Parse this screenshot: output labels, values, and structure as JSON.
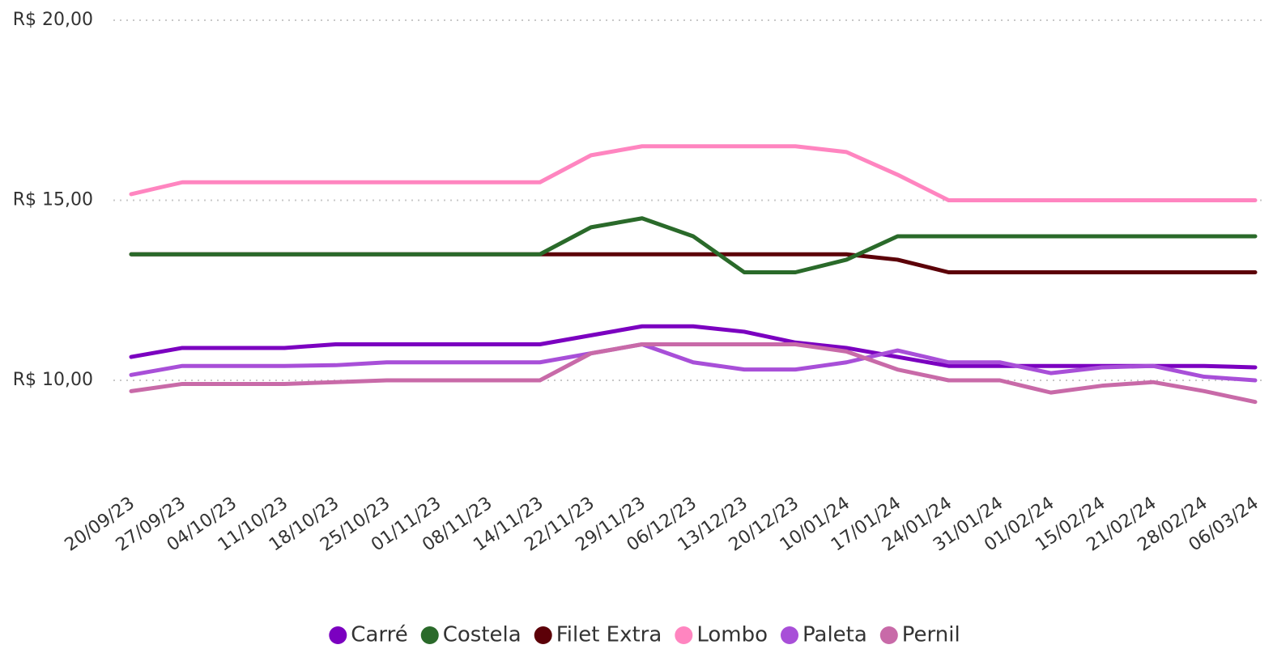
{
  "chart_data": {
    "type": "line",
    "categories": [
      "20/09/23",
      "27/09/23",
      "04/10/23",
      "11/10/23",
      "18/10/23",
      "25/10/23",
      "01/11/23",
      "08/11/23",
      "14/11/23",
      "22/11/23",
      "29/11/23",
      "06/12/23",
      "13/12/23",
      "20/12/23",
      "10/01/24",
      "17/01/24",
      "24/01/24",
      "31/01/24",
      "01/02/24",
      "15/02/24",
      "21/02/24",
      "28/02/24",
      "06/03/24"
    ],
    "series": [
      {
        "name": "Carré",
        "color": "#7b00c0",
        "values": [
          10.65,
          10.9,
          10.9,
          10.9,
          11,
          11,
          11,
          11,
          11,
          11.25,
          11.5,
          11.5,
          11.35,
          11.05,
          10.9,
          10.65,
          10.4,
          10.4,
          10.4,
          10.4,
          10.4,
          10.4,
          10.36
        ]
      },
      {
        "name": "Costela",
        "color": "#2a6a2a",
        "values": [
          13.5,
          13.5,
          13.5,
          13.5,
          13.5,
          13.5,
          13.5,
          13.5,
          13.5,
          14.25,
          14.5,
          14.0,
          13.0,
          13.0,
          13.35,
          14.0,
          14.0,
          14.0,
          14.0,
          14.0,
          14.0,
          14.0,
          14.0
        ]
      },
      {
        "name": "Filet Extra",
        "color": "#5c0008",
        "values": [
          13.5,
          13.5,
          13.5,
          13.5,
          13.5,
          13.5,
          13.5,
          13.5,
          13.5,
          13.5,
          13.5,
          13.5,
          13.5,
          13.5,
          13.5,
          13.35,
          13.0,
          13.0,
          13.0,
          13.0,
          13.0,
          13.0,
          13.0
        ]
      },
      {
        "name": "Lombo",
        "color": "#ff85c0",
        "values": [
          15.17,
          15.5,
          15.5,
          15.5,
          15.5,
          15.5,
          15.5,
          15.5,
          15.5,
          16.25,
          16.5,
          16.5,
          16.5,
          16.5,
          16.34,
          15.71,
          15,
          15,
          15,
          15,
          15,
          15,
          15
        ]
      },
      {
        "name": "Paleta",
        "color": "#a84fd8",
        "values": [
          10.15,
          10.4,
          10.4,
          10.4,
          10.42,
          10.5,
          10.5,
          10.5,
          10.5,
          10.75,
          11,
          10.5,
          10.3,
          10.3,
          10.5,
          10.83,
          10.5,
          10.5,
          10.2,
          10.36,
          10.4,
          10.1,
          10.0
        ]
      },
      {
        "name": "Pernil",
        "color": "#c86aa8",
        "values": [
          9.7,
          9.9,
          9.9,
          9.9,
          9.95,
          10,
          10,
          10,
          10,
          10.75,
          11,
          11,
          11,
          11,
          10.8,
          10.3,
          10,
          10,
          9.66,
          9.85,
          9.95,
          9.7,
          9.4
        ]
      }
    ],
    "ylim": [
      7.5,
      20
    ],
    "yticks": [
      {
        "value": 10,
        "label": "R$ 10,00"
      },
      {
        "value": 15,
        "label": "R$ 15,00"
      },
      {
        "value": 20,
        "label": "R$ 20,00"
      }
    ],
    "grid": true,
    "legend": "bottom"
  }
}
